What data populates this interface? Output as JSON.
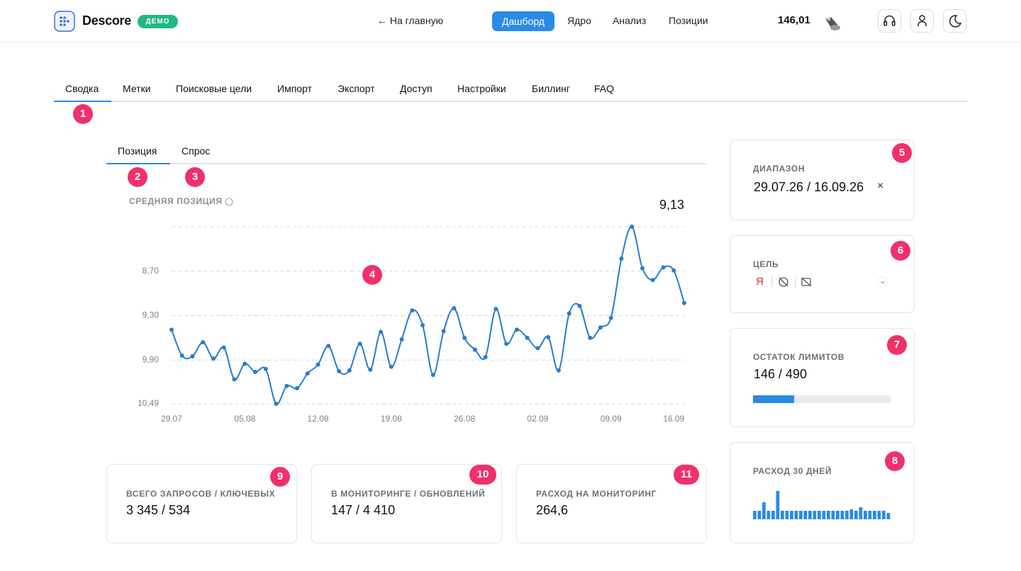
{
  "header": {
    "brand": "Descore",
    "badge": "ДЕМО",
    "back": "← На главную",
    "nav": [
      "Дашборд",
      "Ядро",
      "Анализ",
      "Позиции"
    ],
    "balance": "146,01"
  },
  "tabs": [
    "Сводка",
    "Метки",
    "Поисковые цели",
    "Импорт",
    "Экспорт",
    "Доступ",
    "Настройки",
    "Биллинг",
    "FAQ"
  ],
  "subtabs": [
    "Позиция",
    "Спрос"
  ],
  "badges": [
    "1",
    "2",
    "3",
    "4",
    "5",
    "6",
    "7",
    "8",
    "9",
    "10",
    "11"
  ],
  "chart": {
    "type": "line",
    "title": "СРЕДНЯЯ ПОЗИЦИЯ",
    "current": "9,13",
    "color": "#2a7cc7",
    "reversed": true,
    "ylim": [
      8.1,
      10.49
    ],
    "yticks": [
      {
        "value": 8.7,
        "label": "8,70"
      },
      {
        "value": 9.3,
        "label": "9,30"
      },
      {
        "value": 9.9,
        "label": "9,90"
      },
      {
        "value": 10.49,
        "label": "10,49"
      }
    ],
    "grid": true,
    "categories": [
      "29.07",
      null,
      null,
      null,
      null,
      null,
      null,
      "05.08",
      null,
      null,
      null,
      null,
      null,
      null,
      "12.08",
      null,
      null,
      null,
      null,
      null,
      null,
      "19.08",
      null,
      null,
      null,
      null,
      null,
      null,
      "26.08",
      null,
      null,
      null,
      null,
      null,
      null,
      "02.09",
      null,
      null,
      null,
      null,
      null,
      null,
      "09.09",
      null,
      null,
      null,
      null,
      null,
      "16.09",
      null
    ],
    "values": [
      9.49,
      9.84,
      9.85,
      9.66,
      9.88,
      9.73,
      10.16,
      9.95,
      10.06,
      10.02,
      10.49,
      10.25,
      10.28,
      10.08,
      9.96,
      9.71,
      10.05,
      10.04,
      9.68,
      10.03,
      9.52,
      9.99,
      9.62,
      9.23,
      9.43,
      10.1,
      9.51,
      9.2,
      9.6,
      9.76,
      9.86,
      9.21,
      9.68,
      9.49,
      9.6,
      9.74,
      9.59,
      10.04,
      9.27,
      9.17,
      9.6,
      9.46,
      9.33,
      8.53,
      8.1,
      8.66,
      8.82,
      8.65,
      8.69,
      9.13
    ]
  },
  "range": {
    "label": "ДИАПАЗОН",
    "value": "29.07.26 / 16.09.26",
    "clear": "×"
  },
  "target": {
    "label": "ЦЕЛЬ",
    "yandex": "Я"
  },
  "limits": {
    "label": "ОСТАТОК ЛИМИТОВ",
    "text": "146 / 490",
    "used": 146,
    "total": 490
  },
  "spend": {
    "label": "РАСХОД 30 ДНЕЙ",
    "color": "#2b8ae6",
    "values": [
      12,
      12,
      24,
      12,
      12,
      40,
      12,
      12,
      12,
      12,
      12,
      12,
      12,
      12,
      12,
      12,
      12,
      12,
      12,
      12,
      12,
      14,
      12,
      17,
      12,
      12,
      12,
      12,
      12,
      9
    ]
  },
  "stats": [
    {
      "label": "ВСЕГО ЗАПРОСОВ / КЛЮЧЕВЫХ",
      "value": "3 345 / 534"
    },
    {
      "label": "В МОНИТОРИНГЕ / ОБНОВЛЕНИЙ",
      "value": "147 / 4 410"
    },
    {
      "label": "РАСХОД НА МОНИТОРИНГ",
      "value": "264,6"
    }
  ]
}
